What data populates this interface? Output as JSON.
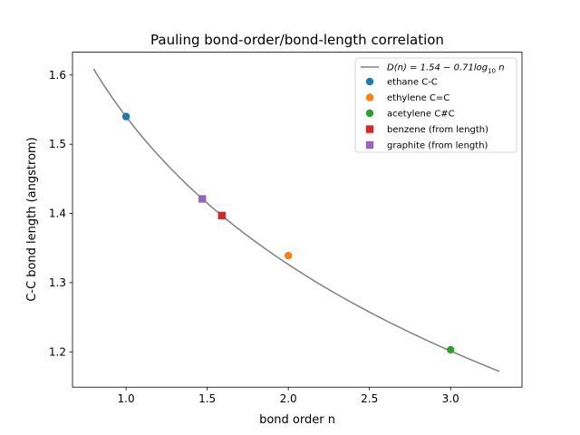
{
  "chart_data": {
    "type": "scatter",
    "title": "Pauling bond-order/bond-length correlation",
    "xlabel": "bond order n",
    "ylabel": "C-C bond length (angstrom)",
    "xlim": [
      0.67,
      3.44
    ],
    "ylim": [
      1.149,
      1.633
    ],
    "xticks": [
      1.0,
      1.5,
      2.0,
      2.5,
      3.0
    ],
    "xtick_labels": [
      "1.0",
      "1.5",
      "2.0",
      "2.5",
      "3.0"
    ],
    "yticks": [
      1.2,
      1.3,
      1.4,
      1.5,
      1.6
    ],
    "ytick_labels": [
      "1.2",
      "1.3",
      "1.4",
      "1.5",
      "1.6"
    ],
    "grid": false,
    "legend_position": "top-right",
    "curve": {
      "name_prefix": "D(n) = 1.54 − 0.71log",
      "name_subscript": "10",
      "name_suffix": " n",
      "intercept": 1.54,
      "coefficient": 0.71,
      "x_range": [
        0.8,
        3.3
      ],
      "color": "#808080"
    },
    "series": [
      {
        "name": "ethane C-C",
        "x": 1.0,
        "y": 1.54,
        "marker": "circle",
        "color": "#1f77b4"
      },
      {
        "name": "ethylene C=C",
        "x": 2.0,
        "y": 1.339,
        "marker": "circle",
        "color": "#ff7f0e"
      },
      {
        "name": "acetylene C#C",
        "x": 3.0,
        "y": 1.203,
        "marker": "circle",
        "color": "#2ca02c"
      },
      {
        "name": "benzene (from length)",
        "x": 1.59,
        "y": 1.397,
        "marker": "square",
        "color": "#d62728"
      },
      {
        "name": "graphite (from length)",
        "x": 1.47,
        "y": 1.421,
        "marker": "square",
        "color": "#9467bd"
      }
    ]
  }
}
